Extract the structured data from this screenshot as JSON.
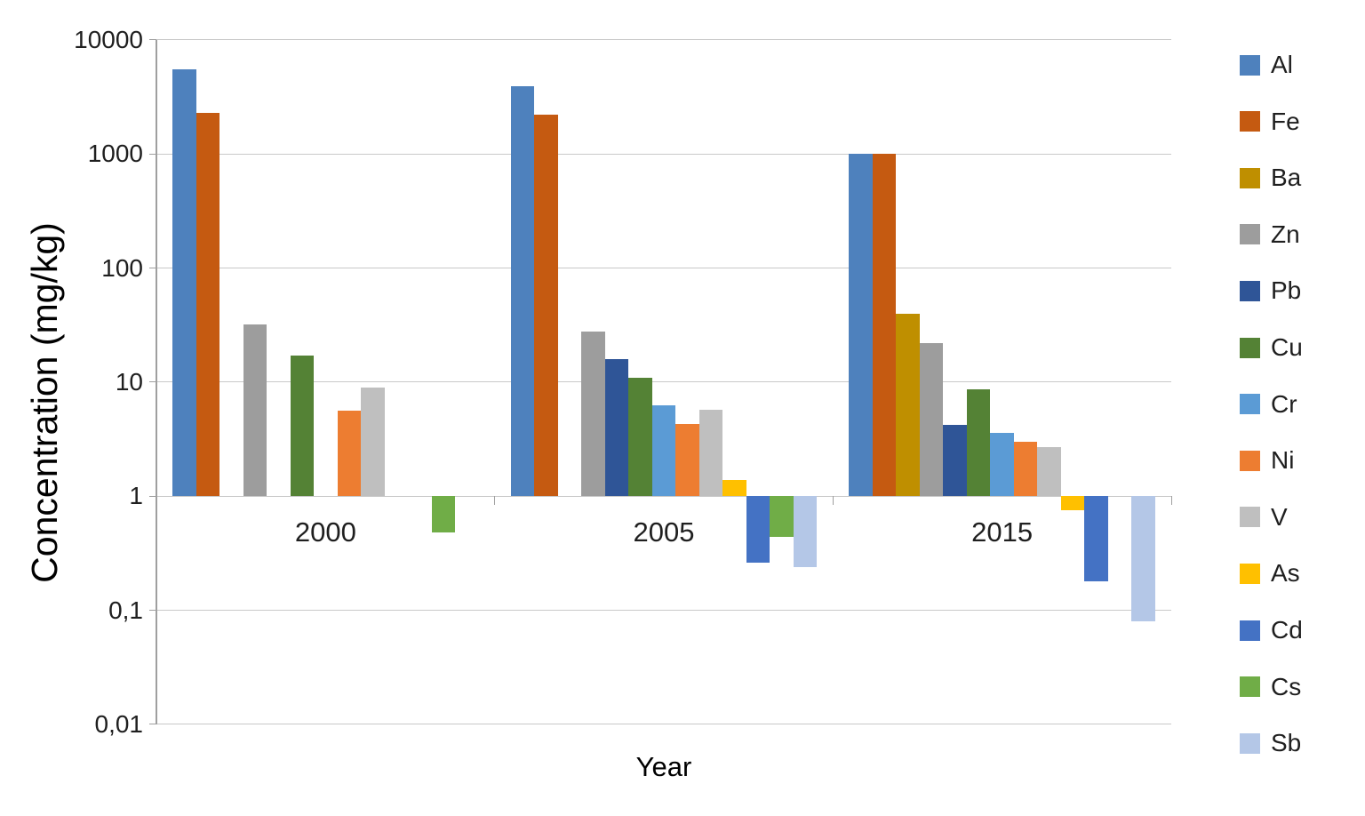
{
  "chart_data": {
    "type": "bar",
    "title": "",
    "xlabel": "Year",
    "ylabel": "Concentration (mg/kg)",
    "y_scale": "log10",
    "ylim": [
      0.01,
      10000
    ],
    "bar_baseline": 1,
    "grid": true,
    "legend_position": "right",
    "y_tick_labels": [
      "10000",
      "1000",
      "100",
      "10",
      "1",
      "0,1",
      "0,01"
    ],
    "y_tick_values": [
      10000,
      1000,
      100,
      10,
      1,
      0.1,
      0.01
    ],
    "categories": [
      "2000",
      "2005",
      "2015"
    ],
    "series": [
      {
        "name": "Al",
        "color": "#4E81BD",
        "values": [
          5500,
          3900,
          1000
        ]
      },
      {
        "name": "Fe",
        "color": "#C55A11",
        "values": [
          2300,
          2200,
          1000
        ]
      },
      {
        "name": "Ba",
        "color": "#BF8F00",
        "values": [
          null,
          null,
          40
        ]
      },
      {
        "name": "Zn",
        "color": "#9D9D9D",
        "values": [
          32,
          28,
          22
        ]
      },
      {
        "name": "Pb",
        "color": "#2F5597",
        "values": [
          null,
          16,
          4.2
        ]
      },
      {
        "name": "Cu",
        "color": "#548235",
        "values": [
          17,
          11,
          8.7
        ]
      },
      {
        "name": "Cr",
        "color": "#5B9BD5",
        "values": [
          null,
          6.3,
          3.6
        ]
      },
      {
        "name": "Ni",
        "color": "#ED7D31",
        "values": [
          5.6,
          4.3,
          3.0
        ]
      },
      {
        "name": "V",
        "color": "#BFBFBF",
        "values": [
          9,
          5.7,
          2.7
        ]
      },
      {
        "name": "As",
        "color": "#FFC000",
        "values": [
          null,
          1.4,
          0.75
        ]
      },
      {
        "name": "Cd",
        "color": "#4472C4",
        "values": [
          null,
          0.26,
          0.18
        ]
      },
      {
        "name": "Cs",
        "color": "#70AD47",
        "values": [
          0.48,
          0.44,
          null
        ]
      },
      {
        "name": "Sb",
        "color": "#B4C7E7",
        "values": [
          null,
          0.24,
          0.08
        ]
      }
    ]
  }
}
